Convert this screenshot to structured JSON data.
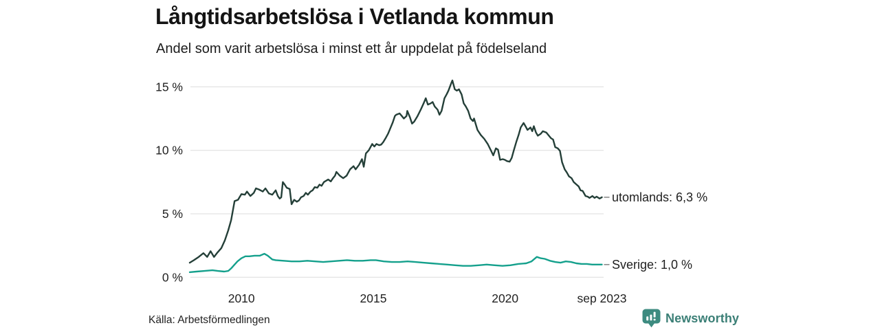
{
  "header": {
    "title": "Långtidsarbetslösa i Vetlanda kommun",
    "subtitle": "Andel som varit arbetslösa i minst ett år uppdelat på födelseland"
  },
  "footer": {
    "source": "Källa: Arbetsförmedlingen",
    "brand": "Newsworthy",
    "brand_color": "#3b7f76",
    "brand_icon": "bar-chart-bubble-icon",
    "brand_icon_color": "#3d8b80"
  },
  "chart_data": {
    "type": "line",
    "title": "Långtidsarbetslösa i Vetlanda kommun",
    "subtitle": "Andel som varit arbetslösa i minst ett år uppdelat på födelseland",
    "grid": true,
    "legend_position": "right-end-labels",
    "x_axis": {
      "range": [
        2008.04,
        2023.67
      ],
      "ticks": [
        {
          "t": 2010,
          "label": "2010"
        },
        {
          "t": 2015,
          "label": "2015"
        },
        {
          "t": 2020,
          "label": "2020"
        },
        {
          "t": 2023.67,
          "label": "sep 2023"
        }
      ]
    },
    "y_axis": {
      "unit": "%",
      "range": [
        0,
        15.6
      ],
      "ticks": [
        {
          "v": 0,
          "label": "0 %"
        },
        {
          "v": 5,
          "label": "5 %"
        },
        {
          "v": 10,
          "label": "10 %"
        },
        {
          "v": 15,
          "label": "15 %"
        }
      ]
    },
    "colors": {
      "grid": "#e4e4e4",
      "utomlands": "#243f38",
      "sverige": "#14a08c",
      "label_text": "#1f1f1f",
      "tick_text": "#222222",
      "dash": "#8a8a8a"
    },
    "series": [
      {
        "name": "utomlands",
        "end_label": "utomlands: 6,3 %",
        "end_value_display": "6,3 %",
        "color": "#243f38",
        "points": [
          [
            2008.04,
            1.15
          ],
          [
            2008.2,
            1.35
          ],
          [
            2008.38,
            1.6
          ],
          [
            2008.56,
            1.9
          ],
          [
            2008.7,
            1.6
          ],
          [
            2008.83,
            2.05
          ],
          [
            2008.96,
            1.6
          ],
          [
            2009.09,
            1.95
          ],
          [
            2009.24,
            2.3
          ],
          [
            2009.37,
            2.9
          ],
          [
            2009.5,
            3.7
          ],
          [
            2009.61,
            4.5
          ],
          [
            2009.74,
            6.0
          ],
          [
            2009.87,
            6.1
          ],
          [
            2010.0,
            6.55
          ],
          [
            2010.13,
            6.5
          ],
          [
            2010.21,
            6.75
          ],
          [
            2010.34,
            6.4
          ],
          [
            2010.47,
            6.65
          ],
          [
            2010.55,
            7.0
          ],
          [
            2010.68,
            6.9
          ],
          [
            2010.81,
            6.75
          ],
          [
            2010.91,
            7.0
          ],
          [
            2011.04,
            6.6
          ],
          [
            2011.17,
            6.5
          ],
          [
            2011.3,
            6.85
          ],
          [
            2011.38,
            6.4
          ],
          [
            2011.45,
            6.2
          ],
          [
            2011.51,
            6.3
          ],
          [
            2011.57,
            7.5
          ],
          [
            2011.64,
            7.3
          ],
          [
            2011.72,
            7.05
          ],
          [
            2011.83,
            6.95
          ],
          [
            2011.9,
            5.75
          ],
          [
            2012.0,
            6.1
          ],
          [
            2012.1,
            5.95
          ],
          [
            2012.18,
            6.05
          ],
          [
            2012.26,
            6.3
          ],
          [
            2012.36,
            6.4
          ],
          [
            2012.44,
            6.65
          ],
          [
            2012.52,
            6.5
          ],
          [
            2012.62,
            6.75
          ],
          [
            2012.7,
            6.85
          ],
          [
            2012.78,
            7.1
          ],
          [
            2012.88,
            7.05
          ],
          [
            2012.96,
            7.3
          ],
          [
            2013.04,
            7.2
          ],
          [
            2013.13,
            7.5
          ],
          [
            2013.21,
            7.6
          ],
          [
            2013.29,
            7.7
          ],
          [
            2013.39,
            7.55
          ],
          [
            2013.47,
            7.8
          ],
          [
            2013.55,
            8.0
          ],
          [
            2013.6,
            8.3
          ],
          [
            2013.73,
            8.0
          ],
          [
            2013.86,
            7.8
          ],
          [
            2013.99,
            8.0
          ],
          [
            2014.12,
            8.5
          ],
          [
            2014.25,
            8.75
          ],
          [
            2014.33,
            8.5
          ],
          [
            2014.46,
            8.85
          ],
          [
            2014.57,
            9.3
          ],
          [
            2014.64,
            8.7
          ],
          [
            2014.72,
            9.75
          ],
          [
            2014.83,
            10.0
          ],
          [
            2014.96,
            10.5
          ],
          [
            2015.04,
            10.3
          ],
          [
            2015.12,
            10.5
          ],
          [
            2015.22,
            10.4
          ],
          [
            2015.3,
            10.45
          ],
          [
            2015.38,
            10.65
          ],
          [
            2015.48,
            11.0
          ],
          [
            2015.56,
            11.3
          ],
          [
            2015.64,
            11.7
          ],
          [
            2015.74,
            12.2
          ],
          [
            2015.82,
            12.7
          ],
          [
            2015.87,
            12.8
          ],
          [
            2016.0,
            12.9
          ],
          [
            2016.08,
            12.7
          ],
          [
            2016.16,
            12.5
          ],
          [
            2016.26,
            12.7
          ],
          [
            2016.29,
            13.1
          ],
          [
            2016.39,
            12.6
          ],
          [
            2016.47,
            12.1
          ],
          [
            2016.55,
            12.25
          ],
          [
            2016.68,
            12.7
          ],
          [
            2016.81,
            13.25
          ],
          [
            2016.91,
            13.7
          ],
          [
            2016.99,
            14.1
          ],
          [
            2017.07,
            13.6
          ],
          [
            2017.18,
            13.7
          ],
          [
            2017.25,
            13.8
          ],
          [
            2017.33,
            13.45
          ],
          [
            2017.44,
            13.2
          ],
          [
            2017.51,
            12.8
          ],
          [
            2017.59,
            13.1
          ],
          [
            2017.7,
            14.1
          ],
          [
            2017.78,
            14.4
          ],
          [
            2017.85,
            14.7
          ],
          [
            2017.96,
            15.3
          ],
          [
            2018.0,
            15.5
          ],
          [
            2018.09,
            14.8
          ],
          [
            2018.17,
            14.7
          ],
          [
            2018.25,
            14.8
          ],
          [
            2018.35,
            14.4
          ],
          [
            2018.43,
            13.7
          ],
          [
            2018.51,
            13.45
          ],
          [
            2018.6,
            13.1
          ],
          [
            2018.69,
            12.5
          ],
          [
            2018.78,
            12.3
          ],
          [
            2018.82,
            12.5
          ],
          [
            2018.95,
            11.6
          ],
          [
            2019.08,
            11.2
          ],
          [
            2019.21,
            10.9
          ],
          [
            2019.34,
            10.5
          ],
          [
            2019.47,
            9.95
          ],
          [
            2019.55,
            9.6
          ],
          [
            2019.65,
            10.15
          ],
          [
            2019.73,
            10.05
          ],
          [
            2019.81,
            9.25
          ],
          [
            2019.91,
            9.3
          ],
          [
            2019.99,
            9.25
          ],
          [
            2020.07,
            9.15
          ],
          [
            2020.17,
            9.1
          ],
          [
            2020.25,
            9.4
          ],
          [
            2020.33,
            10.0
          ],
          [
            2020.43,
            10.7
          ],
          [
            2020.51,
            11.2
          ],
          [
            2020.59,
            11.8
          ],
          [
            2020.7,
            12.15
          ],
          [
            2020.77,
            11.9
          ],
          [
            2020.85,
            11.6
          ],
          [
            2020.96,
            11.8
          ],
          [
            2021.03,
            11.5
          ],
          [
            2021.09,
            11.9
          ],
          [
            2021.17,
            11.4
          ],
          [
            2021.24,
            11.15
          ],
          [
            2021.35,
            11.3
          ],
          [
            2021.43,
            11.5
          ],
          [
            2021.56,
            11.4
          ],
          [
            2021.64,
            11.2
          ],
          [
            2021.74,
            10.95
          ],
          [
            2021.82,
            10.85
          ],
          [
            2021.9,
            10.25
          ],
          [
            2022.0,
            10.15
          ],
          [
            2022.08,
            9.95
          ],
          [
            2022.16,
            9.05
          ],
          [
            2022.26,
            8.5
          ],
          [
            2022.34,
            8.25
          ],
          [
            2022.42,
            7.95
          ],
          [
            2022.52,
            7.8
          ],
          [
            2022.6,
            7.5
          ],
          [
            2022.68,
            7.35
          ],
          [
            2022.79,
            7.15
          ],
          [
            2022.86,
            6.85
          ],
          [
            2022.94,
            6.8
          ],
          [
            2023.05,
            6.4
          ],
          [
            2023.13,
            6.35
          ],
          [
            2023.2,
            6.25
          ],
          [
            2023.31,
            6.4
          ],
          [
            2023.39,
            6.25
          ],
          [
            2023.47,
            6.35
          ],
          [
            2023.58,
            6.2
          ],
          [
            2023.67,
            6.3
          ]
        ]
      },
      {
        "name": "Sverige",
        "end_label": "Sverige: 1,0 %",
        "end_value_display": "1,0 %",
        "color": "#14a08c",
        "points": [
          [
            2008.04,
            0.4
          ],
          [
            2008.3,
            0.45
          ],
          [
            2008.6,
            0.5
          ],
          [
            2008.9,
            0.55
          ],
          [
            2009.1,
            0.5
          ],
          [
            2009.35,
            0.45
          ],
          [
            2009.5,
            0.5
          ],
          [
            2009.61,
            0.7
          ],
          [
            2009.74,
            1.0
          ],
          [
            2009.85,
            1.25
          ],
          [
            2010.0,
            1.5
          ],
          [
            2010.15,
            1.65
          ],
          [
            2010.3,
            1.65
          ],
          [
            2010.5,
            1.7
          ],
          [
            2010.7,
            1.7
          ],
          [
            2010.87,
            1.85
          ],
          [
            2011.0,
            1.7
          ],
          [
            2011.17,
            1.4
          ],
          [
            2011.3,
            1.35
          ],
          [
            2011.6,
            1.3
          ],
          [
            2011.9,
            1.25
          ],
          [
            2012.2,
            1.25
          ],
          [
            2012.5,
            1.3
          ],
          [
            2012.8,
            1.25
          ],
          [
            2013.1,
            1.2
          ],
          [
            2013.4,
            1.25
          ],
          [
            2013.7,
            1.3
          ],
          [
            2014.0,
            1.35
          ],
          [
            2014.3,
            1.3
          ],
          [
            2014.6,
            1.3
          ],
          [
            2014.9,
            1.35
          ],
          [
            2015.1,
            1.35
          ],
          [
            2015.4,
            1.25
          ],
          [
            2015.7,
            1.2
          ],
          [
            2016.0,
            1.2
          ],
          [
            2016.3,
            1.25
          ],
          [
            2016.6,
            1.2
          ],
          [
            2016.9,
            1.15
          ],
          [
            2017.2,
            1.1
          ],
          [
            2017.5,
            1.05
          ],
          [
            2017.8,
            1.0
          ],
          [
            2018.1,
            0.95
          ],
          [
            2018.4,
            0.9
          ],
          [
            2018.7,
            0.9
          ],
          [
            2019.0,
            0.95
          ],
          [
            2019.3,
            1.0
          ],
          [
            2019.6,
            0.95
          ],
          [
            2019.9,
            0.9
          ],
          [
            2020.2,
            0.95
          ],
          [
            2020.5,
            1.05
          ],
          [
            2020.8,
            1.1
          ],
          [
            2021.0,
            1.25
          ],
          [
            2021.2,
            1.6
          ],
          [
            2021.35,
            1.5
          ],
          [
            2021.5,
            1.45
          ],
          [
            2021.7,
            1.3
          ],
          [
            2021.9,
            1.2
          ],
          [
            2022.1,
            1.15
          ],
          [
            2022.3,
            1.25
          ],
          [
            2022.5,
            1.2
          ],
          [
            2022.7,
            1.1
          ],
          [
            2022.9,
            1.05
          ],
          [
            2023.1,
            1.05
          ],
          [
            2023.3,
            1.0
          ],
          [
            2023.67,
            1.0
          ]
        ]
      }
    ]
  }
}
